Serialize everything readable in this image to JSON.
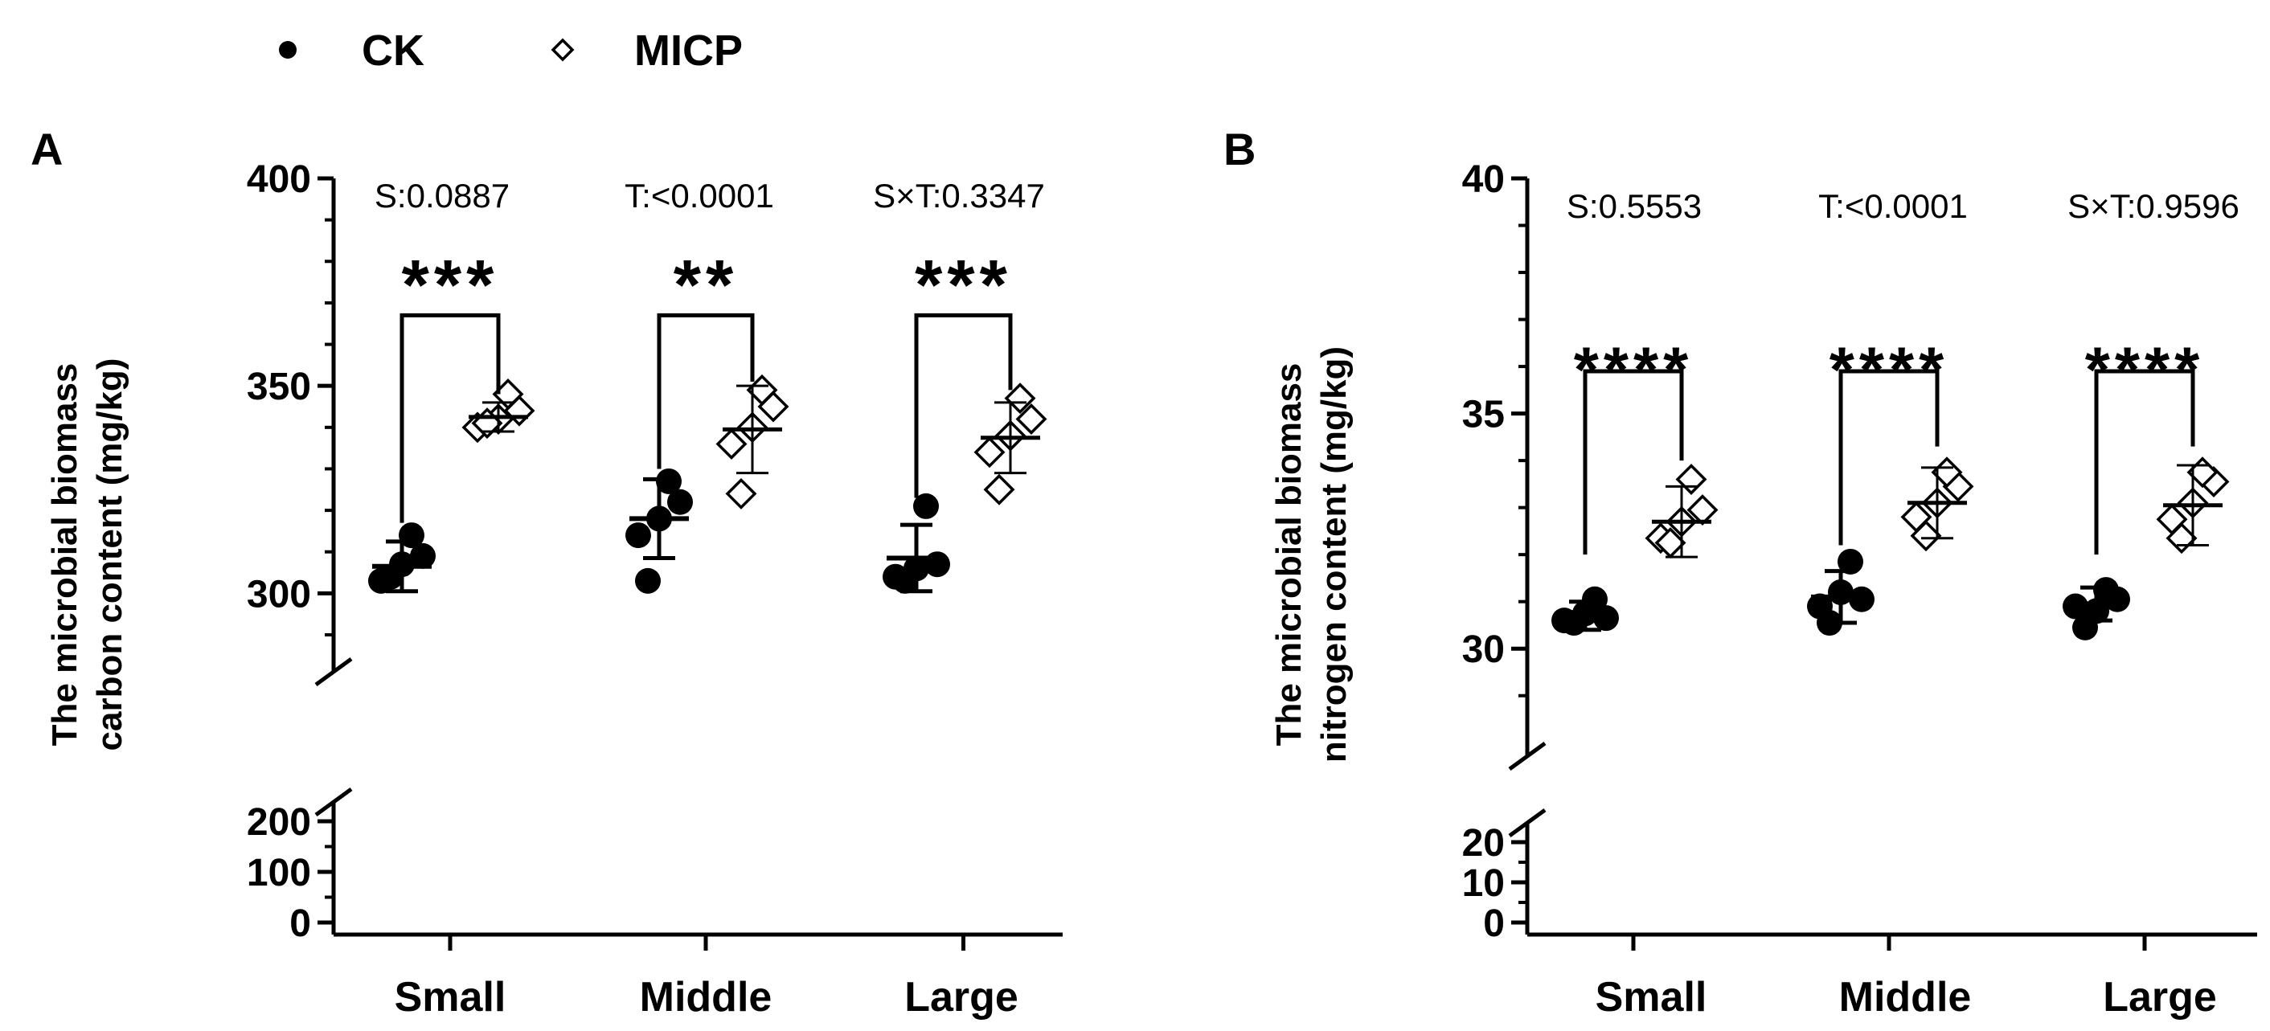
{
  "legend": {
    "items": [
      {
        "label": "CK",
        "marker": "filled-circle"
      },
      {
        "label": "MICP",
        "marker": "open-diamond"
      }
    ]
  },
  "colors": {
    "ink": "#000000",
    "background": "#ffffff"
  },
  "chart_data": [
    {
      "type": "scatter",
      "panel_label": "A",
      "ylabel_lines": [
        "The microbial biomass",
        "carbon content (mg/kg)"
      ],
      "categories": [
        "Small",
        "Middle",
        "Large"
      ],
      "stats_text": [
        "S:0.0887",
        "T:<0.0001",
        "S×T:0.3347"
      ],
      "significance": [
        "***",
        "**",
        "***"
      ],
      "ylim": [
        0,
        400
      ],
      "axis_break": {
        "lower": [
          0,
          200
        ],
        "upper": [
          290,
          400
        ]
      },
      "yticks_upper": [
        300,
        350,
        400
      ],
      "yticks_lower": [
        0,
        100,
        200
      ],
      "series": [
        {
          "name": "CK",
          "marker": "filled-circle",
          "mean": [
            306.5,
            318,
            308.5
          ],
          "sd": [
            6,
            9.5,
            8
          ],
          "points": [
            [
              303,
              307,
              309,
              314,
              304
            ],
            [
              314,
              318,
              322,
              327,
              303
            ],
            [
              304,
              306,
              307,
              321,
              303
            ]
          ]
        },
        {
          "name": "MICP",
          "marker": "open-diamond",
          "mean": [
            342.5,
            339.5,
            337.5
          ],
          "sd": [
            3.5,
            10.5,
            8.5
          ],
          "points": [
            [
              340,
              342,
              344,
              348,
              341
            ],
            [
              336,
              340,
              345,
              349,
              324
            ],
            [
              334,
              338,
              342,
              347,
              325
            ]
          ]
        }
      ],
      "brackets": [
        {
          "left_from": 317,
          "right_from": 348,
          "top": 367
        },
        {
          "left_from": 330,
          "right_from": 351,
          "top": 367
        },
        {
          "left_from": 323,
          "right_from": 349,
          "top": 367
        }
      ]
    },
    {
      "type": "scatter",
      "panel_label": "B",
      "ylabel_lines": [
        "The microbial biomass",
        "nitrogen content (mg/kg)"
      ],
      "categories": [
        "Small",
        "Middle",
        "Large"
      ],
      "stats_text": [
        "S:0.5553",
        "T:<0.0001",
        "S×T:0.9596"
      ],
      "significance": [
        "****",
        "****",
        "****"
      ],
      "ylim": [
        0,
        40
      ],
      "axis_break": {
        "lower": [
          0,
          20
        ],
        "upper": [
          28.5,
          40
        ]
      },
      "yticks_upper": [
        30,
        35,
        40
      ],
      "yticks_lower": [
        0,
        10,
        20
      ],
      "series": [
        {
          "name": "CK",
          "marker": "filled-circle",
          "mean": [
            30.7,
            31.1,
            30.95
          ],
          "sd": [
            0.3,
            0.55,
            0.35
          ],
          "points": [
            [
              30.6,
              30.75,
              30.65,
              31.05,
              30.55
            ],
            [
              30.9,
              31.2,
              31.05,
              31.85,
              30.55
            ],
            [
              30.9,
              30.8,
              31.05,
              31.25,
              30.45
            ]
          ]
        },
        {
          "name": "MICP",
          "marker": "open-diamond",
          "mean": [
            32.7,
            33.1,
            33.05
          ],
          "sd": [
            0.75,
            0.75,
            0.85
          ],
          "points": [
            [
              32.35,
              32.7,
              32.95,
              33.6,
              32.25
            ],
            [
              32.8,
              33.1,
              33.45,
              33.75,
              32.4
            ],
            [
              32.75,
              33.1,
              33.55,
              33.75,
              32.35
            ]
          ]
        }
      ],
      "brackets": [
        {
          "left_from": 32.0,
          "right_from": 34.0,
          "top": 35.9
        },
        {
          "left_from": 32.2,
          "right_from": 34.3,
          "top": 35.9
        },
        {
          "left_from": 32.0,
          "right_from": 34.3,
          "top": 35.9
        }
      ]
    }
  ]
}
